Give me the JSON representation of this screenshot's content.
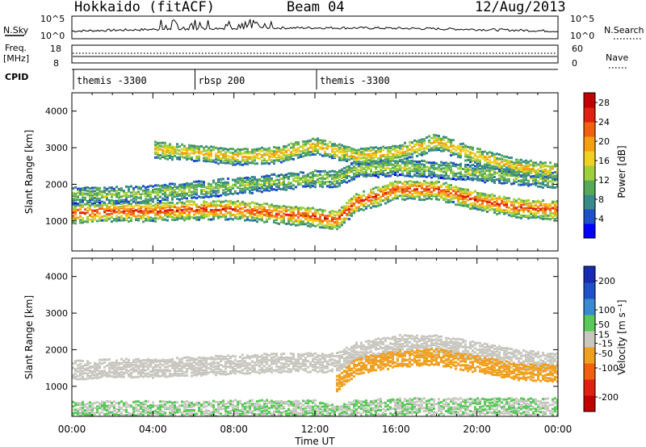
{
  "header": {
    "station": "Hokkaido (fitACF)",
    "beam": "Beam 04",
    "date": "12/Aug/2013"
  },
  "strips": {
    "nsky_label": "N.Sky",
    "nsky_ticks": [
      "10^5",
      "10^0"
    ],
    "nsearch_label": "N.Search",
    "freq_label_1": "Freq.",
    "freq_label_2": "[MHz]",
    "freq_ticks": [
      "18",
      "8"
    ],
    "nave_label": "Nave",
    "nave_ticks": [
      "60",
      "0"
    ],
    "cpid_label": "CPID",
    "cpid_segments": [
      {
        "label": "themis -3300",
        "start_hour": 0,
        "end_hour": 6
      },
      {
        "label": "rbsp 200",
        "start_hour": 6,
        "end_hour": 12
      },
      {
        "label": "themis -3300",
        "start_hour": 12,
        "end_hour": 24
      }
    ]
  },
  "colors": {
    "power_scale": [
      "#0000ff",
      "#2050c8",
      "#3a8a8a",
      "#58a85a",
      "#9fcf3a",
      "#f0d020",
      "#f5a010",
      "#f06010",
      "#e02010",
      "#c00000"
    ],
    "velocity_scale": [
      "#1a2ab0",
      "#2050c8",
      "#3a8ad0",
      "#5ac85a",
      "#c8c8c0",
      "#f0a020",
      "#f06010",
      "#e02010",
      "#c00000"
    ],
    "ground_scatter": "#c8c8c0"
  },
  "chart_data": [
    {
      "type": "heatmap",
      "panel": "power",
      "xlabel": "Time UT",
      "ylabel": "Slant Range [km]",
      "xlim": [
        0,
        24
      ],
      "ylim": [
        180,
        4500
      ],
      "x_ticks": [
        "00:00",
        "04:00",
        "08:00",
        "12:00",
        "16:00",
        "20:00",
        "00:00"
      ],
      "y_ticks": [
        1000,
        2000,
        3000,
        4000
      ],
      "colorbar": {
        "label": "Power [dB]",
        "ticks": [
          4,
          8,
          12,
          16,
          20,
          24,
          28
        ],
        "range": [
          0,
          30
        ]
      },
      "echo_bands": [
        {
          "x": [
            0,
            2,
            4,
            6,
            8,
            10,
            12,
            13,
            14,
            16,
            18,
            20,
            22,
            24
          ],
          "range_km": [
            1250,
            1300,
            1300,
            1350,
            1350,
            1250,
            1150,
            1050,
            1550,
            1900,
            1900,
            1600,
            1400,
            1350
          ],
          "power_db": 26
        },
        {
          "x": [
            0,
            2,
            4,
            6,
            8,
            10,
            12,
            13,
            14,
            16,
            18,
            20,
            22,
            24
          ],
          "range_km": [
            1750,
            1750,
            1800,
            1900,
            2000,
            2100,
            2200,
            2200,
            2450,
            2500,
            2450,
            2350,
            2250,
            2150
          ],
          "power_db": 14
        },
        {
          "x": [
            4,
            6,
            8,
            10,
            12,
            14,
            16,
            18,
            20,
            22,
            24
          ],
          "range_km": [
            3000,
            2900,
            2800,
            2850,
            3100,
            2800,
            2900,
            3200,
            2800,
            2500,
            2400
          ],
          "power_db": 20
        }
      ]
    },
    {
      "type": "heatmap",
      "panel": "velocity",
      "xlabel": "Time UT",
      "ylabel": "Slant Range [km]",
      "xlim": [
        0,
        24
      ],
      "ylim": [
        180,
        4500
      ],
      "x_ticks": [
        "00:00",
        "04:00",
        "08:00",
        "12:00",
        "16:00",
        "20:00",
        "00:00"
      ],
      "y_ticks": [
        1000,
        2000,
        3000,
        4000
      ],
      "colorbar": {
        "label": "Velocity [m s⁻¹]",
        "ticks": [
          200,
          100,
          50,
          15,
          -15,
          -50,
          -100,
          -200
        ],
        "range": [
          -250,
          250
        ]
      },
      "echo_bands": [
        {
          "x": [
            0,
            2,
            4,
            6,
            8,
            10,
            12,
            13,
            14,
            16,
            18,
            20,
            22,
            24
          ],
          "range_km": [
            1500,
            1550,
            1550,
            1600,
            1650,
            1700,
            1700,
            1700,
            2000,
            2200,
            2200,
            2000,
            1800,
            1700
          ],
          "velocity": -10
        },
        {
          "x": [
            0,
            2,
            4,
            6,
            8,
            10,
            12,
            13,
            14,
            16,
            18,
            20,
            22,
            24
          ],
          "range_km": [
            400,
            420,
            420,
            420,
            450,
            450,
            450,
            300,
            450,
            500,
            500,
            500,
            500,
            500
          ],
          "velocity": 30
        },
        {
          "x": [
            13,
            14,
            16,
            18,
            20,
            22,
            24
          ],
          "range_km": [
            1100,
            1600,
            1800,
            1850,
            1650,
            1450,
            1400
          ],
          "velocity": -60
        }
      ]
    }
  ]
}
